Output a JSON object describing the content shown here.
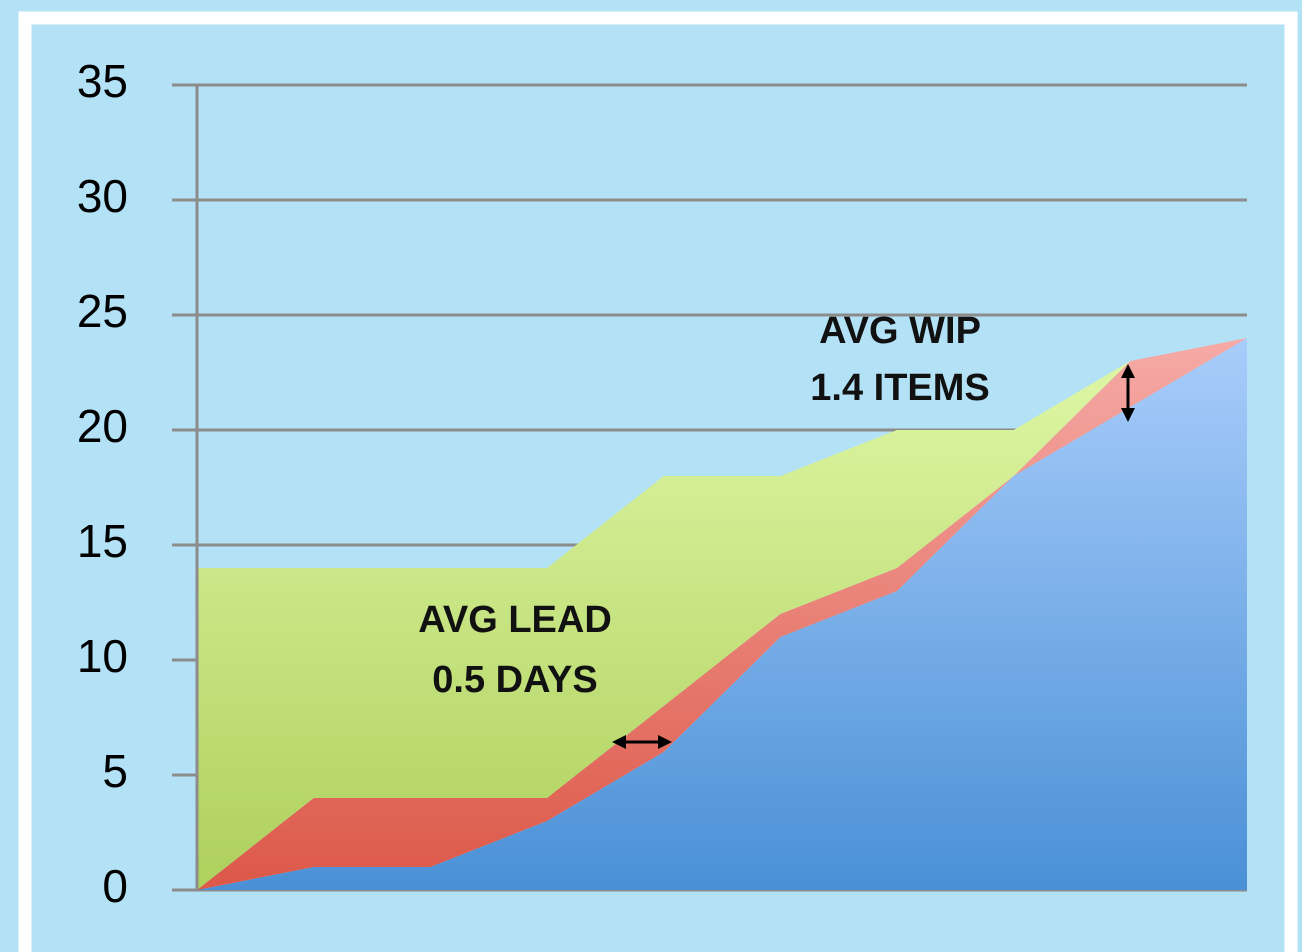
{
  "chart_data": {
    "type": "stacked_area",
    "categories": [
      null,
      null,
      null,
      null,
      null,
      null,
      null,
      null,
      null,
      null
    ],
    "series": [
      {
        "color": "#5b9be0",
        "values": [
          0,
          1,
          1,
          3,
          6,
          11,
          13,
          18,
          21,
          24
        ]
      },
      {
        "color": "#e8706a",
        "values": [
          0,
          3,
          3,
          1,
          2,
          1,
          1,
          0,
          2,
          0
        ]
      },
      {
        "color": "#c8e68a",
        "values": [
          14,
          10,
          10,
          10,
          10,
          6,
          6,
          2,
          0,
          0
        ]
      }
    ],
    "ylim": [
      0,
      35
    ],
    "yticks": [
      0,
      5,
      10,
      15,
      20,
      25,
      30,
      35
    ],
    "grid": true,
    "annotations": [
      "AVG LEAD",
      "0.5 DAYS",
      "AVG WIP",
      "1.4 ITEMS"
    ]
  }
}
